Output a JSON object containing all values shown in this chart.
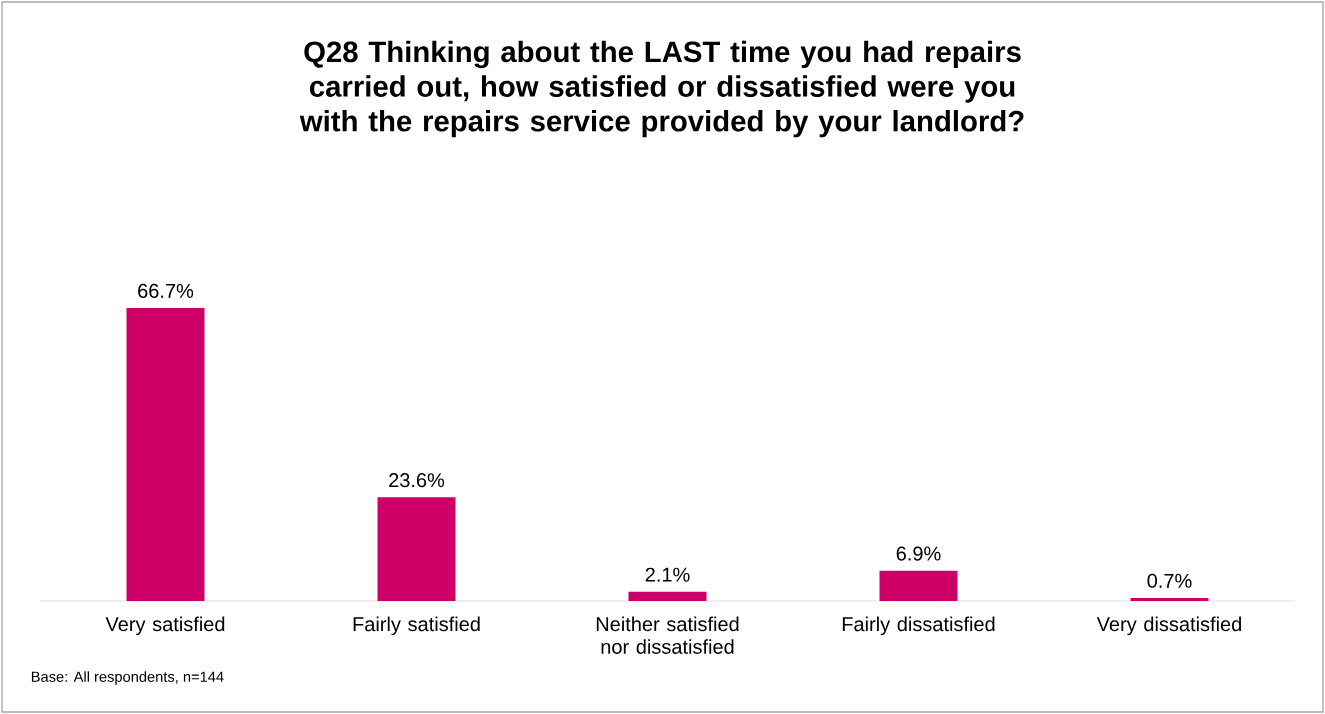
{
  "chart_data": {
    "type": "bar",
    "title": "Q28 Thinking about the LAST time you had repairs carried out, how satisfied or dissatisfied were you with the repairs service provided by your landlord?",
    "categories": [
      "Very satisfied",
      "Fairly satisfied",
      "Neither satisfied nor dissatisfied",
      "Fairly dissatisfied",
      "Very dissatisfied"
    ],
    "values": [
      66.7,
      23.6,
      2.1,
      6.9,
      0.7
    ],
    "value_labels": [
      "66.7%",
      "23.6%",
      "2.1%",
      "6.9%",
      "0.7%"
    ],
    "color": "#cc0066",
    "annotations": [
      "Base: All respondents, n=144"
    ]
  }
}
